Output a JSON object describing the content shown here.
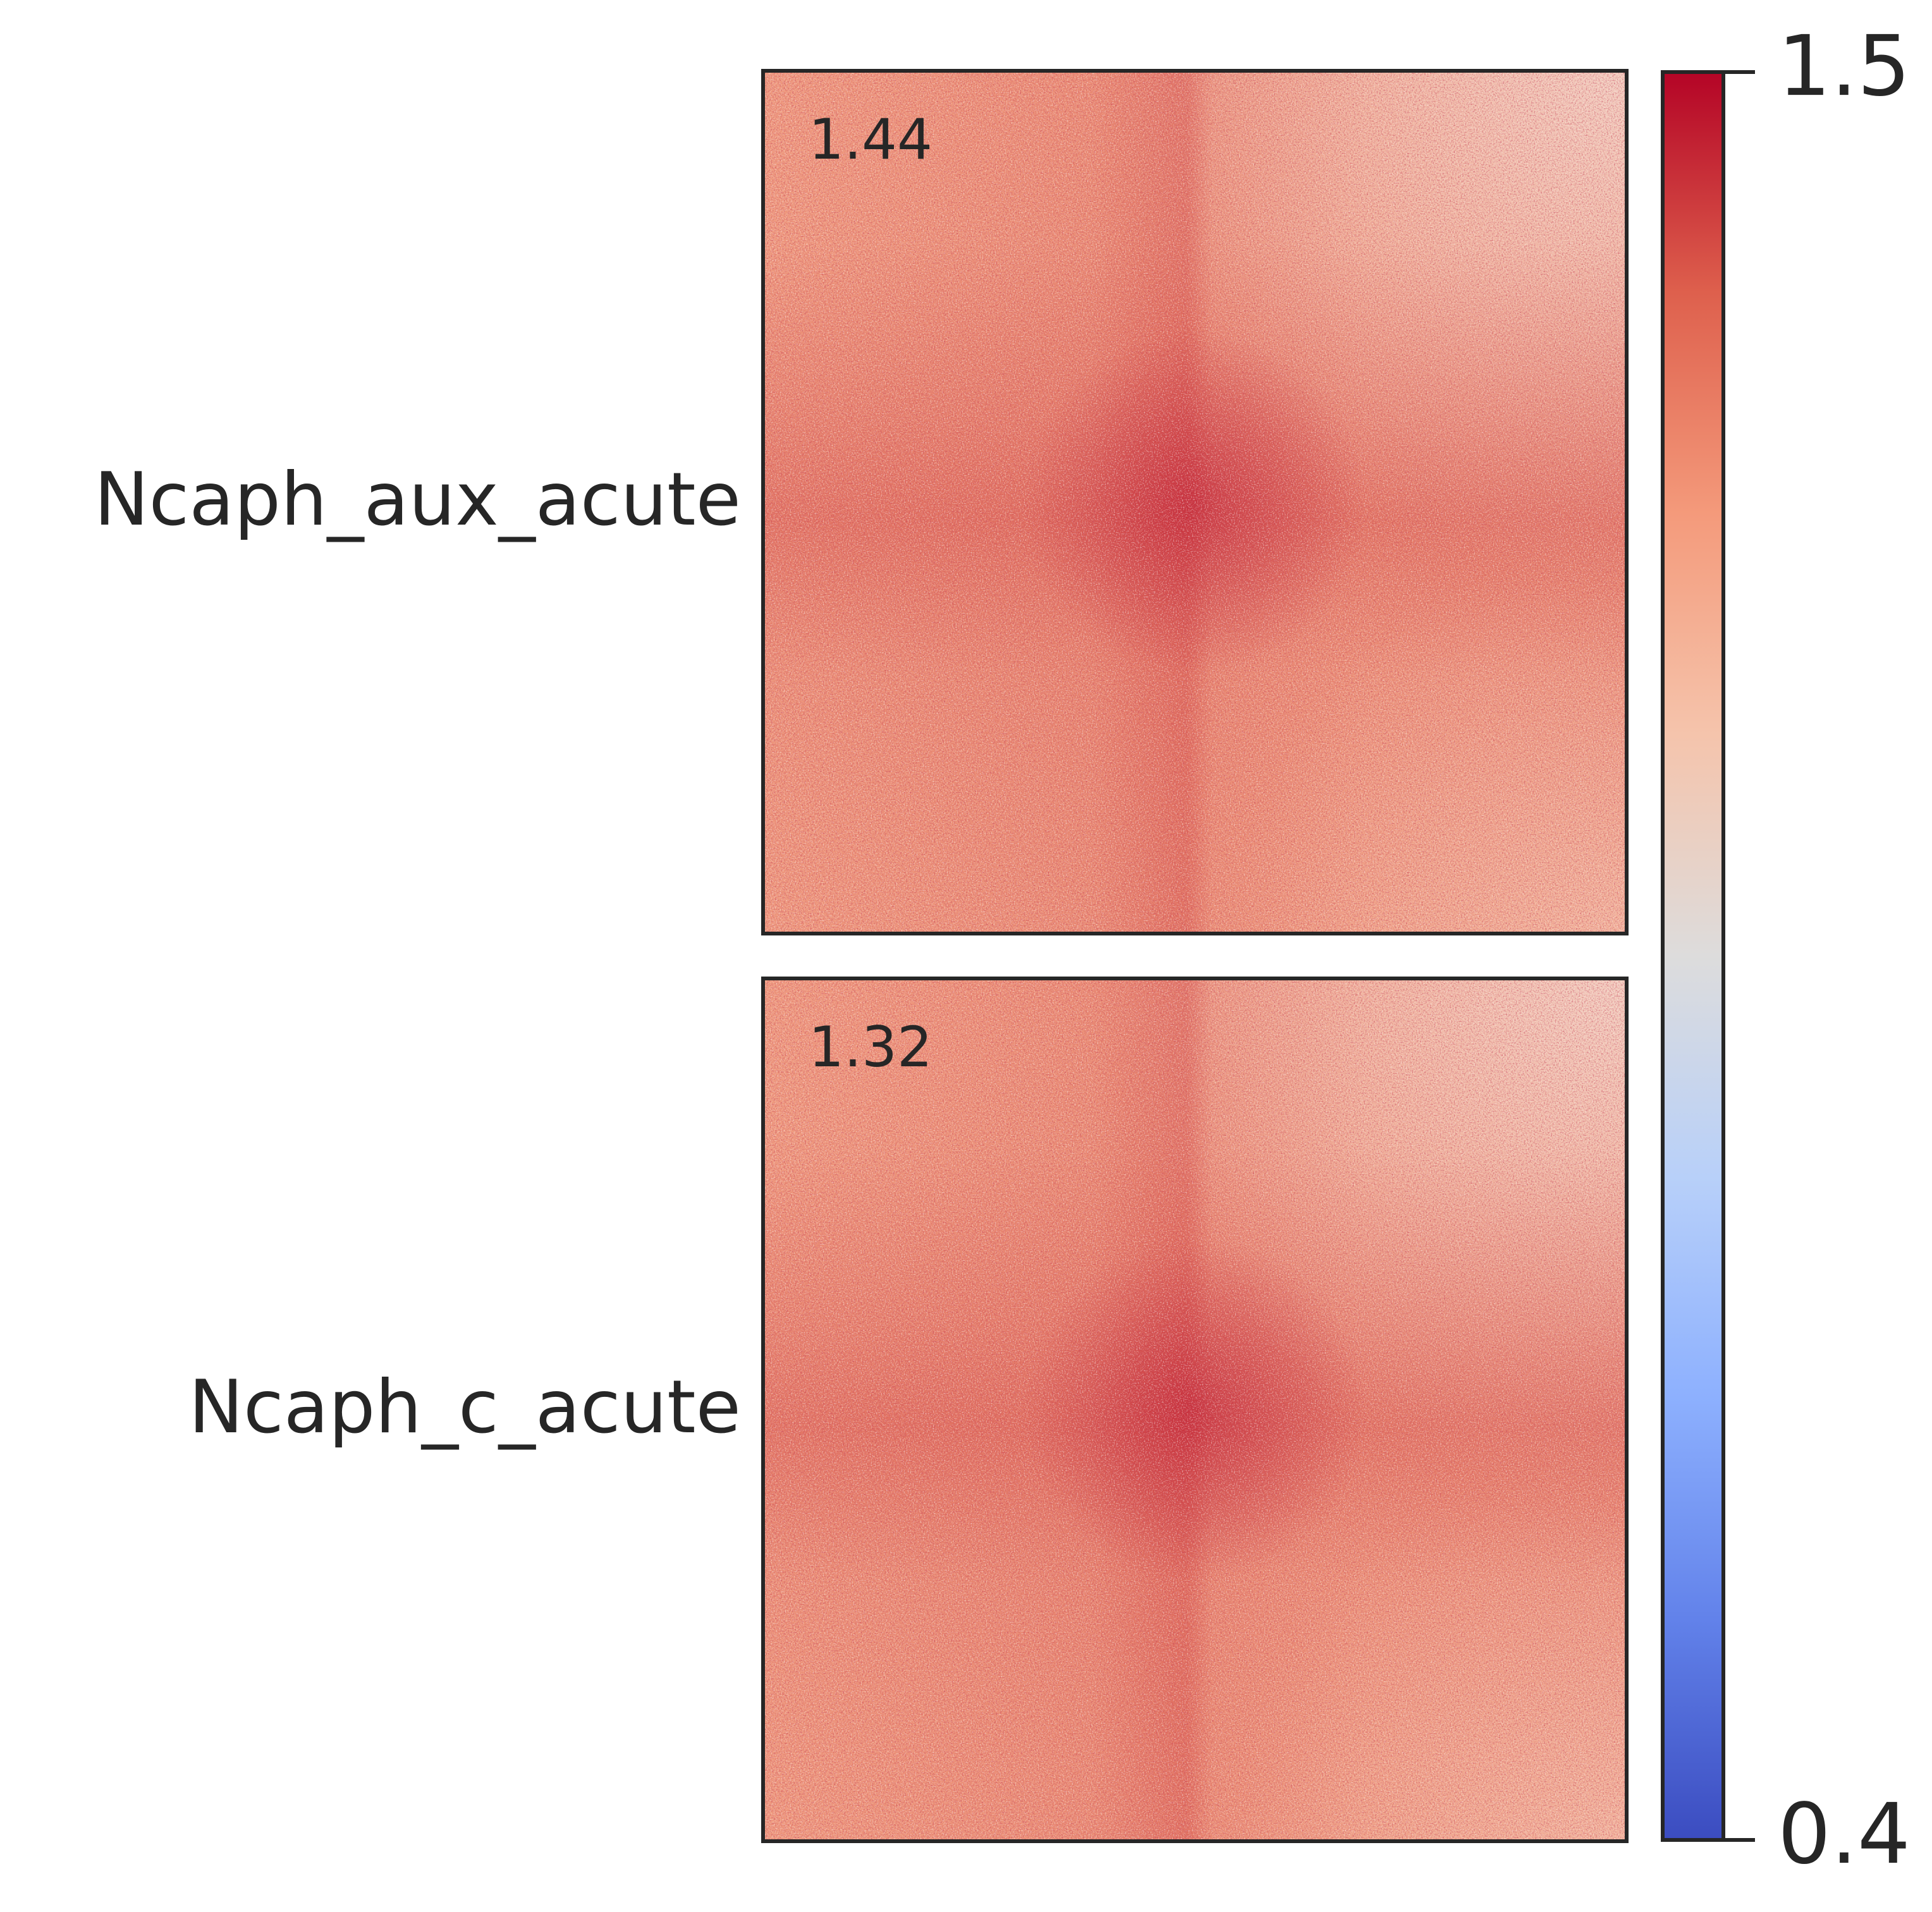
{
  "chart_data": {
    "type": "heatmap",
    "panels": [
      {
        "label": "Ncaph_aux_acute",
        "annotation": 1.44
      },
      {
        "label": "Ncaph_c_acute",
        "annotation": 1.32
      }
    ],
    "colorbar": {
      "colormap": "coolwarm",
      "lim": [
        0.4,
        1.5
      ],
      "ticks": [
        0.4,
        1.5
      ]
    }
  }
}
